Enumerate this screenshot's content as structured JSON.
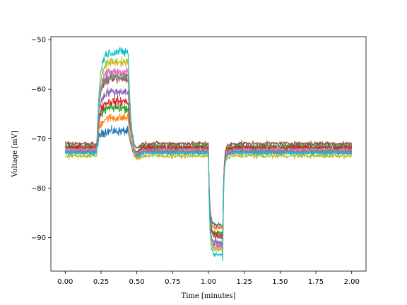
{
  "chart_data": {
    "type": "line",
    "title": "",
    "xlabel": "Time [minutes]",
    "ylabel": "Voltage [mV]",
    "xlim": [
      -0.1,
      2.1
    ],
    "ylim": [
      -96.8,
      -49.4
    ],
    "x_ticks": [
      0.0,
      0.25,
      0.5,
      0.75,
      1.0,
      1.25,
      1.5,
      1.75,
      2.0
    ],
    "x_tick_labels": [
      "0.00",
      "0.25",
      "0.50",
      "0.75",
      "1.00",
      "1.25",
      "1.50",
      "1.75",
      "2.00"
    ],
    "y_ticks": [
      -90,
      -80,
      -70,
      -60,
      -50
    ],
    "y_tick_labels": [
      "−90",
      "−80",
      "−70",
      "−60",
      "−50"
    ],
    "grid": false,
    "legend": "none",
    "x_range": [
      0.0,
      2.0
    ],
    "stimulus_windows": [
      {
        "start": 0.22,
        "end": 0.44,
        "kind": "depolarizing"
      },
      {
        "start": 1.0,
        "end": 1.1,
        "kind": "hyperpolarizing"
      }
    ],
    "series": [
      {
        "color": "#1f77b4",
        "baseline": -72.0,
        "depol_peak": -68.5,
        "hyper_trough": -87.5
      },
      {
        "color": "#ff7f0e",
        "baseline": -72.5,
        "depol_peak": -65.8,
        "hyper_trough": -88.0
      },
      {
        "color": "#2ca02c",
        "baseline": -71.5,
        "depol_peak": -63.8,
        "hyper_trough": -89.0
      },
      {
        "color": "#d62728",
        "baseline": -71.8,
        "depol_peak": -62.5,
        "hyper_trough": -89.5
      },
      {
        "color": "#9467bd",
        "baseline": -72.8,
        "depol_peak": -60.5,
        "hyper_trough": -91.0
      },
      {
        "color": "#8c564b",
        "baseline": -71.0,
        "depol_peak": -58.0,
        "hyper_trough": -90.0
      },
      {
        "color": "#e377c2",
        "baseline": -72.3,
        "depol_peak": -56.5,
        "hyper_trough": -92.0
      },
      {
        "color": "#7f7f7f",
        "baseline": -72.6,
        "depol_peak": -57.5,
        "hyper_trough": -91.5
      },
      {
        "color": "#bcbd22",
        "baseline": -73.5,
        "depol_peak": -54.5,
        "hyper_trough": -92.5
      },
      {
        "color": "#17becf",
        "baseline": -72.9,
        "depol_peak": -52.5,
        "hyper_trough": -93.5
      }
    ]
  }
}
